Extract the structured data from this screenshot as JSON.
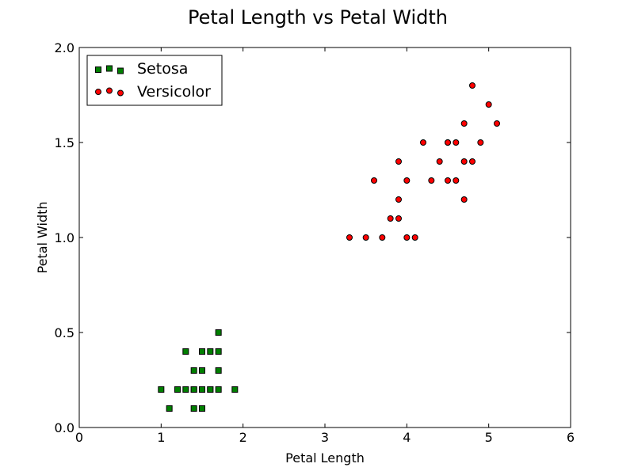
{
  "chart_data": {
    "type": "scatter",
    "title": "Petal Length vs Petal Width",
    "xlabel": "Petal Length",
    "ylabel": "Petal Width",
    "xlim": [
      0,
      6
    ],
    "ylim": [
      0.0,
      2.0
    ],
    "xticks": [
      0,
      1,
      2,
      3,
      4,
      5,
      6
    ],
    "xtick_labels": [
      "0",
      "1",
      "2",
      "3",
      "4",
      "5",
      "6"
    ],
    "yticks": [
      0.0,
      0.5,
      1.0,
      1.5,
      2.0
    ],
    "ytick_labels": [
      "0.0",
      "0.5",
      "1.0",
      "1.5",
      "2.0"
    ],
    "grid": false,
    "legend": {
      "position": "top-left"
    },
    "series": [
      {
        "name": "Setosa",
        "marker": "square",
        "color": "#007f00",
        "x": [
          1.0,
          1.1,
          1.2,
          1.3,
          1.3,
          1.4,
          1.4,
          1.4,
          1.4,
          1.5,
          1.5,
          1.5,
          1.5,
          1.5,
          1.6,
          1.6,
          1.6,
          1.7,
          1.7,
          1.7,
          1.7,
          1.9
        ],
        "y": [
          0.2,
          0.1,
          0.2,
          0.2,
          0.4,
          0.1,
          0.2,
          0.3,
          0.2,
          0.1,
          0.2,
          0.3,
          0.4,
          0.4,
          0.2,
          0.4,
          0.2,
          0.2,
          0.3,
          0.4,
          0.5,
          0.2
        ]
      },
      {
        "name": "Versicolor",
        "marker": "circle",
        "color": "#ff0000",
        "x": [
          3.3,
          3.5,
          3.6,
          3.7,
          3.8,
          3.9,
          3.9,
          3.9,
          4.0,
          4.0,
          4.1,
          4.2,
          4.3,
          4.4,
          4.5,
          4.5,
          4.5,
          4.6,
          4.6,
          4.7,
          4.7,
          4.7,
          4.8,
          4.8,
          4.9,
          5.0,
          5.1
        ],
        "y": [
          1.0,
          1.0,
          1.3,
          1.0,
          1.1,
          1.1,
          1.2,
          1.4,
          1.0,
          1.3,
          1.0,
          1.5,
          1.3,
          1.4,
          1.3,
          1.5,
          1.5,
          1.3,
          1.5,
          1.2,
          1.4,
          1.6,
          1.4,
          1.8,
          1.5,
          1.7,
          1.6
        ]
      }
    ]
  }
}
